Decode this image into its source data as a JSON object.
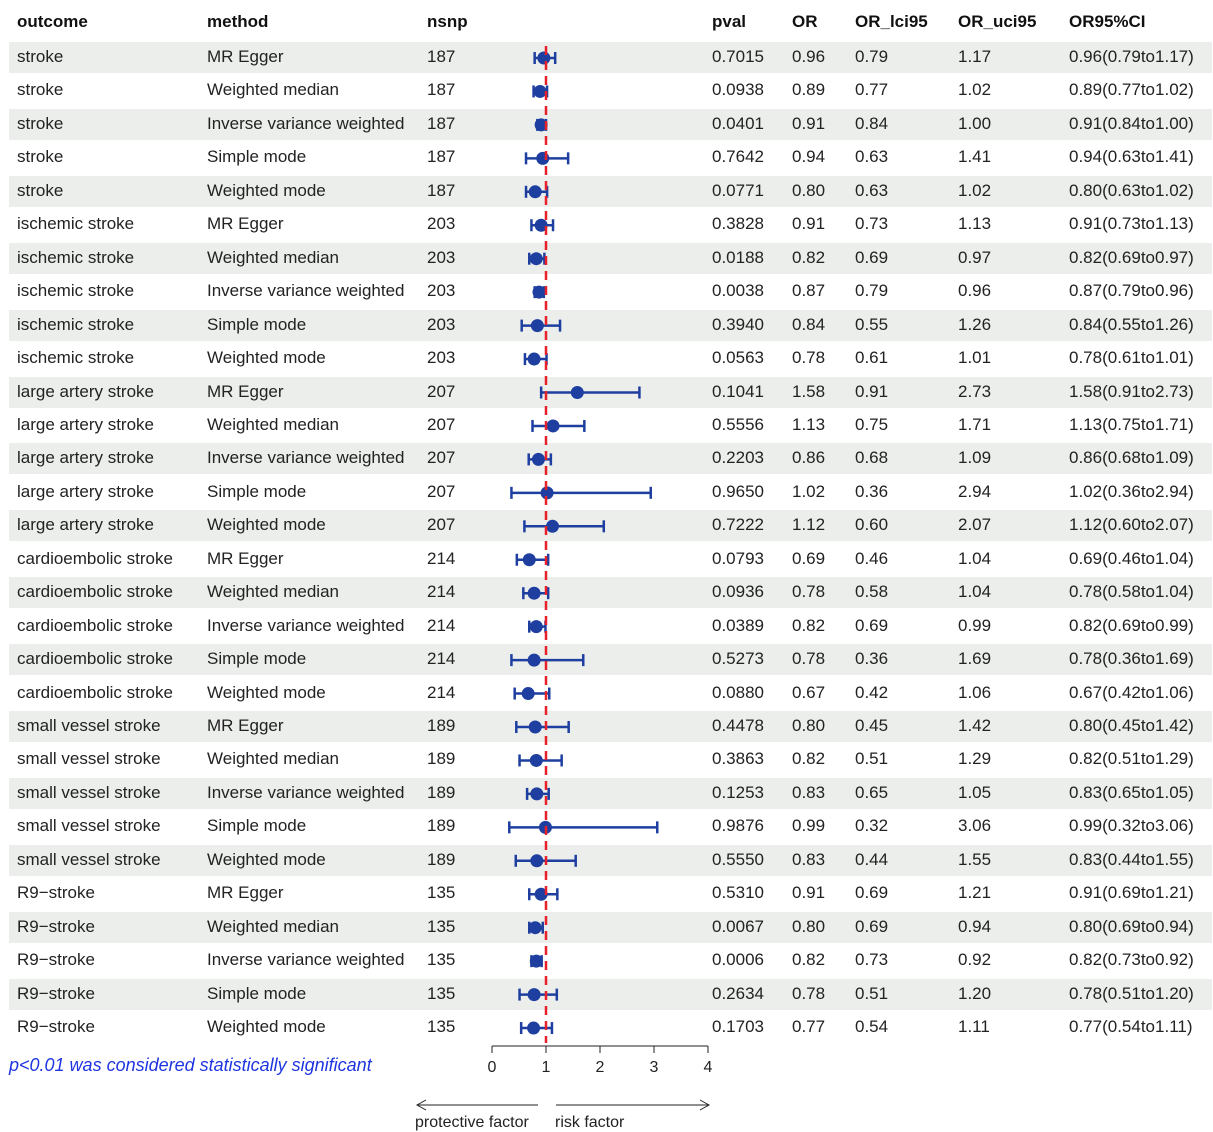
{
  "headers": {
    "outcome": "outcome",
    "method": "method",
    "nsnp": "nsnp",
    "pval": "pval",
    "or": "OR",
    "or_lci": "OR_lci95",
    "or_uci": "OR_uci95",
    "or_ci": "OR95%CI"
  },
  "rows": [
    {
      "outcome": "stroke",
      "method": "MR Egger",
      "nsnp": "187",
      "pval": "0.7015",
      "or": "0.96",
      "lci": "0.79",
      "uci": "1.17",
      "ci": "0.96(0.79to1.17)"
    },
    {
      "outcome": "stroke",
      "method": "Weighted median",
      "nsnp": "187",
      "pval": "0.0938",
      "or": "0.89",
      "lci": "0.77",
      "uci": "1.02",
      "ci": "0.89(0.77to1.02)"
    },
    {
      "outcome": "stroke",
      "method": "Inverse variance weighted",
      "nsnp": "187",
      "pval": "0.0401",
      "or": "0.91",
      "lci": "0.84",
      "uci": "1.00",
      "ci": "0.91(0.84to1.00)"
    },
    {
      "outcome": "stroke",
      "method": "Simple mode",
      "nsnp": "187",
      "pval": "0.7642",
      "or": "0.94",
      "lci": "0.63",
      "uci": "1.41",
      "ci": "0.94(0.63to1.41)"
    },
    {
      "outcome": "stroke",
      "method": "Weighted mode",
      "nsnp": "187",
      "pval": "0.0771",
      "or": "0.80",
      "lci": "0.63",
      "uci": "1.02",
      "ci": "0.80(0.63to1.02)"
    },
    {
      "outcome": "ischemic stroke",
      "method": "MR Egger",
      "nsnp": "203",
      "pval": "0.3828",
      "or": "0.91",
      "lci": "0.73",
      "uci": "1.13",
      "ci": "0.91(0.73to1.13)"
    },
    {
      "outcome": "ischemic stroke",
      "method": "Weighted median",
      "nsnp": "203",
      "pval": "0.0188",
      "or": "0.82",
      "lci": "0.69",
      "uci": "0.97",
      "ci": "0.82(0.69to0.97)"
    },
    {
      "outcome": "ischemic stroke",
      "method": "Inverse variance weighted",
      "nsnp": "203",
      "pval": "0.0038",
      "or": "0.87",
      "lci": "0.79",
      "uci": "0.96",
      "ci": "0.87(0.79to0.96)"
    },
    {
      "outcome": "ischemic stroke",
      "method": "Simple mode",
      "nsnp": "203",
      "pval": "0.3940",
      "or": "0.84",
      "lci": "0.55",
      "uci": "1.26",
      "ci": "0.84(0.55to1.26)"
    },
    {
      "outcome": "ischemic stroke",
      "method": "Weighted mode",
      "nsnp": "203",
      "pval": "0.0563",
      "or": "0.78",
      "lci": "0.61",
      "uci": "1.01",
      "ci": "0.78(0.61to1.01)"
    },
    {
      "outcome": "large artery stroke",
      "method": "MR Egger",
      "nsnp": "207",
      "pval": "0.1041",
      "or": "1.58",
      "lci": "0.91",
      "uci": "2.73",
      "ci": "1.58(0.91to2.73)"
    },
    {
      "outcome": "large artery stroke",
      "method": "Weighted median",
      "nsnp": "207",
      "pval": "0.5556",
      "or": "1.13",
      "lci": "0.75",
      "uci": "1.71",
      "ci": "1.13(0.75to1.71)"
    },
    {
      "outcome": "large artery stroke",
      "method": "Inverse variance weighted",
      "nsnp": "207",
      "pval": "0.2203",
      "or": "0.86",
      "lci": "0.68",
      "uci": "1.09",
      "ci": "0.86(0.68to1.09)"
    },
    {
      "outcome": "large artery stroke",
      "method": "Simple mode",
      "nsnp": "207",
      "pval": "0.9650",
      "or": "1.02",
      "lci": "0.36",
      "uci": "2.94",
      "ci": "1.02(0.36to2.94)"
    },
    {
      "outcome": "large artery stroke",
      "method": "Weighted mode",
      "nsnp": "207",
      "pval": "0.7222",
      "or": "1.12",
      "lci": "0.60",
      "uci": "2.07",
      "ci": "1.12(0.60to2.07)"
    },
    {
      "outcome": "cardioembolic stroke",
      "method": "MR Egger",
      "nsnp": "214",
      "pval": "0.0793",
      "or": "0.69",
      "lci": "0.46",
      "uci": "1.04",
      "ci": "0.69(0.46to1.04)"
    },
    {
      "outcome": "cardioembolic stroke",
      "method": "Weighted median",
      "nsnp": "214",
      "pval": "0.0936",
      "or": "0.78",
      "lci": "0.58",
      "uci": "1.04",
      "ci": "0.78(0.58to1.04)"
    },
    {
      "outcome": "cardioembolic stroke",
      "method": "Inverse variance weighted",
      "nsnp": "214",
      "pval": "0.0389",
      "or": "0.82",
      "lci": "0.69",
      "uci": "0.99",
      "ci": "0.82(0.69to0.99)"
    },
    {
      "outcome": "cardioembolic stroke",
      "method": "Simple mode",
      "nsnp": "214",
      "pval": "0.5273",
      "or": "0.78",
      "lci": "0.36",
      "uci": "1.69",
      "ci": "0.78(0.36to1.69)"
    },
    {
      "outcome": "cardioembolic stroke",
      "method": "Weighted mode",
      "nsnp": "214",
      "pval": "0.0880",
      "or": "0.67",
      "lci": "0.42",
      "uci": "1.06",
      "ci": "0.67(0.42to1.06)"
    },
    {
      "outcome": "small vessel stroke",
      "method": "MR Egger",
      "nsnp": "189",
      "pval": "0.4478",
      "or": "0.80",
      "lci": "0.45",
      "uci": "1.42",
      "ci": "0.80(0.45to1.42)"
    },
    {
      "outcome": "small vessel stroke",
      "method": "Weighted median",
      "nsnp": "189",
      "pval": "0.3863",
      "or": "0.82",
      "lci": "0.51",
      "uci": "1.29",
      "ci": "0.82(0.51to1.29)"
    },
    {
      "outcome": "small vessel stroke",
      "method": "Inverse variance weighted",
      "nsnp": "189",
      "pval": "0.1253",
      "or": "0.83",
      "lci": "0.65",
      "uci": "1.05",
      "ci": "0.83(0.65to1.05)"
    },
    {
      "outcome": "small vessel stroke",
      "method": "Simple mode",
      "nsnp": "189",
      "pval": "0.9876",
      "or": "0.99",
      "lci": "0.32",
      "uci": "3.06",
      "ci": "0.99(0.32to3.06)"
    },
    {
      "outcome": "small vessel stroke",
      "method": "Weighted mode",
      "nsnp": "189",
      "pval": "0.5550",
      "or": "0.83",
      "lci": "0.44",
      "uci": "1.55",
      "ci": "0.83(0.44to1.55)"
    },
    {
      "outcome": "R9−stroke",
      "method": "MR Egger",
      "nsnp": "135",
      "pval": "0.5310",
      "or": "0.91",
      "lci": "0.69",
      "uci": "1.21",
      "ci": "0.91(0.69to1.21)"
    },
    {
      "outcome": "R9−stroke",
      "method": "Weighted median",
      "nsnp": "135",
      "pval": "0.0067",
      "or": "0.80",
      "lci": "0.69",
      "uci": "0.94",
      "ci": "0.80(0.69to0.94)"
    },
    {
      "outcome": "R9−stroke",
      "method": "Inverse variance weighted",
      "nsnp": "135",
      "pval": "0.0006",
      "or": "0.82",
      "lci": "0.73",
      "uci": "0.92",
      "ci": "0.82(0.73to0.92)"
    },
    {
      "outcome": "R9−stroke",
      "method": "Simple mode",
      "nsnp": "135",
      "pval": "0.2634",
      "or": "0.78",
      "lci": "0.51",
      "uci": "1.20",
      "ci": "0.78(0.51to1.20)"
    },
    {
      "outcome": "R9−stroke",
      "method": "Weighted mode",
      "nsnp": "135",
      "pval": "0.1703",
      "or": "0.77",
      "lci": "0.54",
      "uci": "1.11",
      "ci": "0.77(0.54to1.11)"
    }
  ],
  "footnote": "p<0.01 was considered statistically significant",
  "direction_labels": {
    "left": "protective factor",
    "right": "risk factor"
  },
  "colors": {
    "point": "#1e3fa0",
    "reference_line": "#e8202a",
    "row_shade": "#ebeeeb",
    "footnote": "#1f35e0"
  },
  "chart_data": {
    "type": "scatter",
    "subtype": "forest",
    "x_ticks": [
      "0",
      "1",
      "2",
      "3",
      "4"
    ],
    "xlim": [
      0,
      4
    ],
    "reference_line": 1,
    "rows": [
      {
        "or": 0.96,
        "lci": 0.79,
        "uci": 1.17
      },
      {
        "or": 0.89,
        "lci": 0.77,
        "uci": 1.02
      },
      {
        "or": 0.91,
        "lci": 0.84,
        "uci": 1.0
      },
      {
        "or": 0.94,
        "lci": 0.63,
        "uci": 1.41
      },
      {
        "or": 0.8,
        "lci": 0.63,
        "uci": 1.02
      },
      {
        "or": 0.91,
        "lci": 0.73,
        "uci": 1.13
      },
      {
        "or": 0.82,
        "lci": 0.69,
        "uci": 0.97
      },
      {
        "or": 0.87,
        "lci": 0.79,
        "uci": 0.96
      },
      {
        "or": 0.84,
        "lci": 0.55,
        "uci": 1.26
      },
      {
        "or": 0.78,
        "lci": 0.61,
        "uci": 1.01
      },
      {
        "or": 1.58,
        "lci": 0.91,
        "uci": 2.73
      },
      {
        "or": 1.13,
        "lci": 0.75,
        "uci": 1.71
      },
      {
        "or": 0.86,
        "lci": 0.68,
        "uci": 1.09
      },
      {
        "or": 1.02,
        "lci": 0.36,
        "uci": 2.94
      },
      {
        "or": 1.12,
        "lci": 0.6,
        "uci": 2.07
      },
      {
        "or": 0.69,
        "lci": 0.46,
        "uci": 1.04
      },
      {
        "or": 0.78,
        "lci": 0.58,
        "uci": 1.04
      },
      {
        "or": 0.82,
        "lci": 0.69,
        "uci": 0.99
      },
      {
        "or": 0.78,
        "lci": 0.36,
        "uci": 1.69
      },
      {
        "or": 0.67,
        "lci": 0.42,
        "uci": 1.06
      },
      {
        "or": 0.8,
        "lci": 0.45,
        "uci": 1.42
      },
      {
        "or": 0.82,
        "lci": 0.51,
        "uci": 1.29
      },
      {
        "or": 0.83,
        "lci": 0.65,
        "uci": 1.05
      },
      {
        "or": 0.99,
        "lci": 0.32,
        "uci": 3.06
      },
      {
        "or": 0.83,
        "lci": 0.44,
        "uci": 1.55
      },
      {
        "or": 0.91,
        "lci": 0.69,
        "uci": 1.21
      },
      {
        "or": 0.8,
        "lci": 0.69,
        "uci": 0.94
      },
      {
        "or": 0.82,
        "lci": 0.73,
        "uci": 0.92
      },
      {
        "or": 0.78,
        "lci": 0.51,
        "uci": 1.2
      },
      {
        "or": 0.77,
        "lci": 0.54,
        "uci": 1.11
      }
    ]
  }
}
